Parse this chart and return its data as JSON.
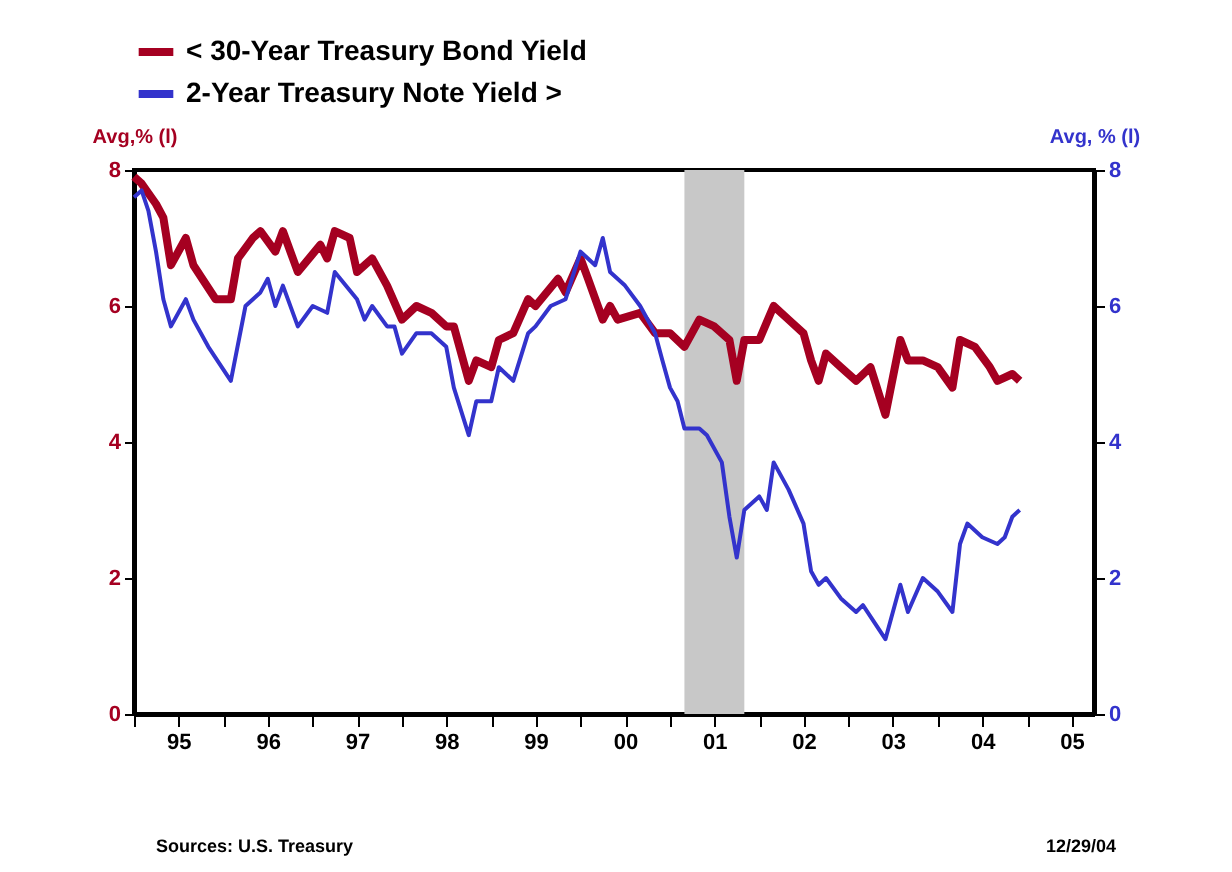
{
  "chart_data": {
    "type": "line",
    "series": [
      {
        "name": "< 30-Year Treasury Bond Yield",
        "color": "#a50021",
        "axis": "y",
        "x": [
          "1995-01",
          "1995-02",
          "1995-04",
          "1995-05",
          "1995-06",
          "1995-08",
          "1995-09",
          "1995-12",
          "1996-02",
          "1996-03",
          "1996-05",
          "1996-06",
          "1996-08",
          "1996-09",
          "1996-11",
          "1997-02",
          "1997-03",
          "1997-04",
          "1997-06",
          "1997-07",
          "1997-09",
          "1997-11",
          "1998-01",
          "1998-03",
          "1998-05",
          "1998-07",
          "1998-08",
          "1998-10",
          "1998-11",
          "1999-01",
          "1999-02",
          "1999-04",
          "1999-06",
          "1999-07",
          "1999-10",
          "1999-11",
          "2000-01",
          "2000-02",
          "2000-04",
          "2000-05",
          "2000-06",
          "2000-09",
          "2000-11",
          "2001-01",
          "2001-03",
          "2001-05",
          "2001-07",
          "2001-09",
          "2001-10",
          "2001-11",
          "2002-01",
          "2002-03",
          "2002-05",
          "2002-07",
          "2002-08",
          "2002-09",
          "2002-10",
          "2002-12",
          "2003-02",
          "2003-04",
          "2003-06",
          "2003-08",
          "2003-09",
          "2003-11",
          "2004-01",
          "2004-03",
          "2004-04",
          "2004-06",
          "2004-08",
          "2004-09",
          "2004-11",
          "2004-12"
        ],
        "values": [
          7.9,
          7.8,
          7.5,
          7.3,
          6.6,
          7.0,
          6.6,
          6.1,
          6.1,
          6.7,
          7.0,
          7.1,
          6.8,
          7.1,
          6.5,
          6.9,
          6.7,
          7.1,
          7.0,
          6.5,
          6.7,
          6.3,
          5.8,
          6.0,
          5.9,
          5.7,
          5.7,
          4.9,
          5.2,
          5.1,
          5.5,
          5.6,
          6.1,
          6.0,
          6.4,
          6.2,
          6.7,
          6.4,
          5.8,
          6.0,
          5.8,
          5.9,
          5.6,
          5.6,
          5.4,
          5.8,
          5.7,
          5.5,
          4.9,
          5.5,
          5.5,
          6.0,
          5.8,
          5.6,
          5.2,
          4.9,
          5.3,
          5.1,
          4.9,
          5.1,
          4.4,
          5.5,
          5.2,
          5.2,
          5.1,
          4.8,
          5.5,
          5.4,
          5.1,
          4.9,
          5.0,
          4.9
        ]
      },
      {
        "name": "2-Year Treasury Note Yield >",
        "color": "#3333cc",
        "axis": "y2",
        "x": [
          "1995-01",
          "1995-02",
          "1995-03",
          "1995-04",
          "1995-05",
          "1995-06",
          "1995-08",
          "1995-09",
          "1995-11",
          "1996-02",
          "1996-04",
          "1996-06",
          "1996-07",
          "1996-08",
          "1996-09",
          "1996-11",
          "1997-01",
          "1997-03",
          "1997-04",
          "1997-07",
          "1997-08",
          "1997-09",
          "1997-11",
          "1997-12",
          "1998-01",
          "1998-03",
          "1998-05",
          "1998-07",
          "1998-08",
          "1998-10",
          "1998-11",
          "1999-01",
          "1999-02",
          "1999-04",
          "1999-06",
          "1999-07",
          "1999-09",
          "1999-11",
          "2000-01",
          "2000-03",
          "2000-04",
          "2000-05",
          "2000-07",
          "2000-09",
          "2000-11",
          "2000-12",
          "2001-01",
          "2001-02",
          "2001-03",
          "2001-05",
          "2001-06",
          "2001-08",
          "2001-09",
          "2001-10",
          "2001-11",
          "2002-01",
          "2002-02",
          "2002-03",
          "2002-05",
          "2002-07",
          "2002-08",
          "2002-09",
          "2002-10",
          "2002-12",
          "2003-02",
          "2003-03",
          "2003-06",
          "2003-08",
          "2003-09",
          "2003-11",
          "2004-01",
          "2004-03",
          "2004-04",
          "2004-05",
          "2004-07",
          "2004-09",
          "2004-10",
          "2004-11",
          "2004-12"
        ],
        "values": [
          7.6,
          7.7,
          7.4,
          6.8,
          6.1,
          5.7,
          6.1,
          5.8,
          5.4,
          4.9,
          6.0,
          6.2,
          6.4,
          6.0,
          6.3,
          5.7,
          6.0,
          5.9,
          6.5,
          6.1,
          5.8,
          6.0,
          5.7,
          5.7,
          5.3,
          5.6,
          5.6,
          5.4,
          4.8,
          4.1,
          4.6,
          4.6,
          5.1,
          4.9,
          5.6,
          5.7,
          6.0,
          6.1,
          6.8,
          6.6,
          7.0,
          6.5,
          6.3,
          6.0,
          5.6,
          5.2,
          4.8,
          4.6,
          4.2,
          4.2,
          4.1,
          3.7,
          2.9,
          2.3,
          3.0,
          3.2,
          3.0,
          3.7,
          3.3,
          2.8,
          2.1,
          1.9,
          2.0,
          1.7,
          1.5,
          1.6,
          1.1,
          1.9,
          1.5,
          2.0,
          1.8,
          1.5,
          2.5,
          2.8,
          2.6,
          2.5,
          2.6,
          2.9,
          3.0
        ]
      }
    ],
    "ylabel": "Avg,%   (l)",
    "y2label": "Avg, %   (l)",
    "xlim": [
      "1995-01-01",
      "2005-10-01"
    ],
    "xticks": [
      {
        "value": "1995-01-01",
        "label": null
      },
      {
        "value": "1995-07-01",
        "label": "95"
      },
      {
        "value": "1996-01-01",
        "label": null
      },
      {
        "value": "1996-07-01",
        "label": "96"
      },
      {
        "value": "1997-01-01",
        "label": null
      },
      {
        "value": "1997-07-01",
        "label": "97"
      },
      {
        "value": "1998-01-01",
        "label": null
      },
      {
        "value": "1998-07-01",
        "label": "98"
      },
      {
        "value": "1999-01-01",
        "label": null
      },
      {
        "value": "1999-07-01",
        "label": "99"
      },
      {
        "value": "2000-01-01",
        "label": null
      },
      {
        "value": "2000-07-01",
        "label": "00"
      },
      {
        "value": "2001-01-01",
        "label": null
      },
      {
        "value": "2001-07-01",
        "label": "01"
      },
      {
        "value": "2002-01-01",
        "label": null
      },
      {
        "value": "2002-07-01",
        "label": "02"
      },
      {
        "value": "2003-01-01",
        "label": null
      },
      {
        "value": "2003-07-01",
        "label": "03"
      },
      {
        "value": "2004-01-01",
        "label": null
      },
      {
        "value": "2004-07-01",
        "label": "04"
      },
      {
        "value": "2005-01-01",
        "label": null
      },
      {
        "value": "2005-07-01",
        "label": "05"
      }
    ],
    "ylim": [
      0,
      8
    ],
    "yticks": [
      0,
      2,
      4,
      6,
      8
    ],
    "y2lim": [
      0,
      8
    ],
    "y2ticks": [
      0,
      2,
      4,
      6,
      8
    ],
    "bands": [
      {
        "axis": "x",
        "from": "2001-03",
        "to": "2001-11",
        "color": "#c8c8c8"
      }
    ],
    "legend": "top",
    "annotations": [
      "Sources:  U.S. Treasury",
      "12/29/04"
    ]
  }
}
